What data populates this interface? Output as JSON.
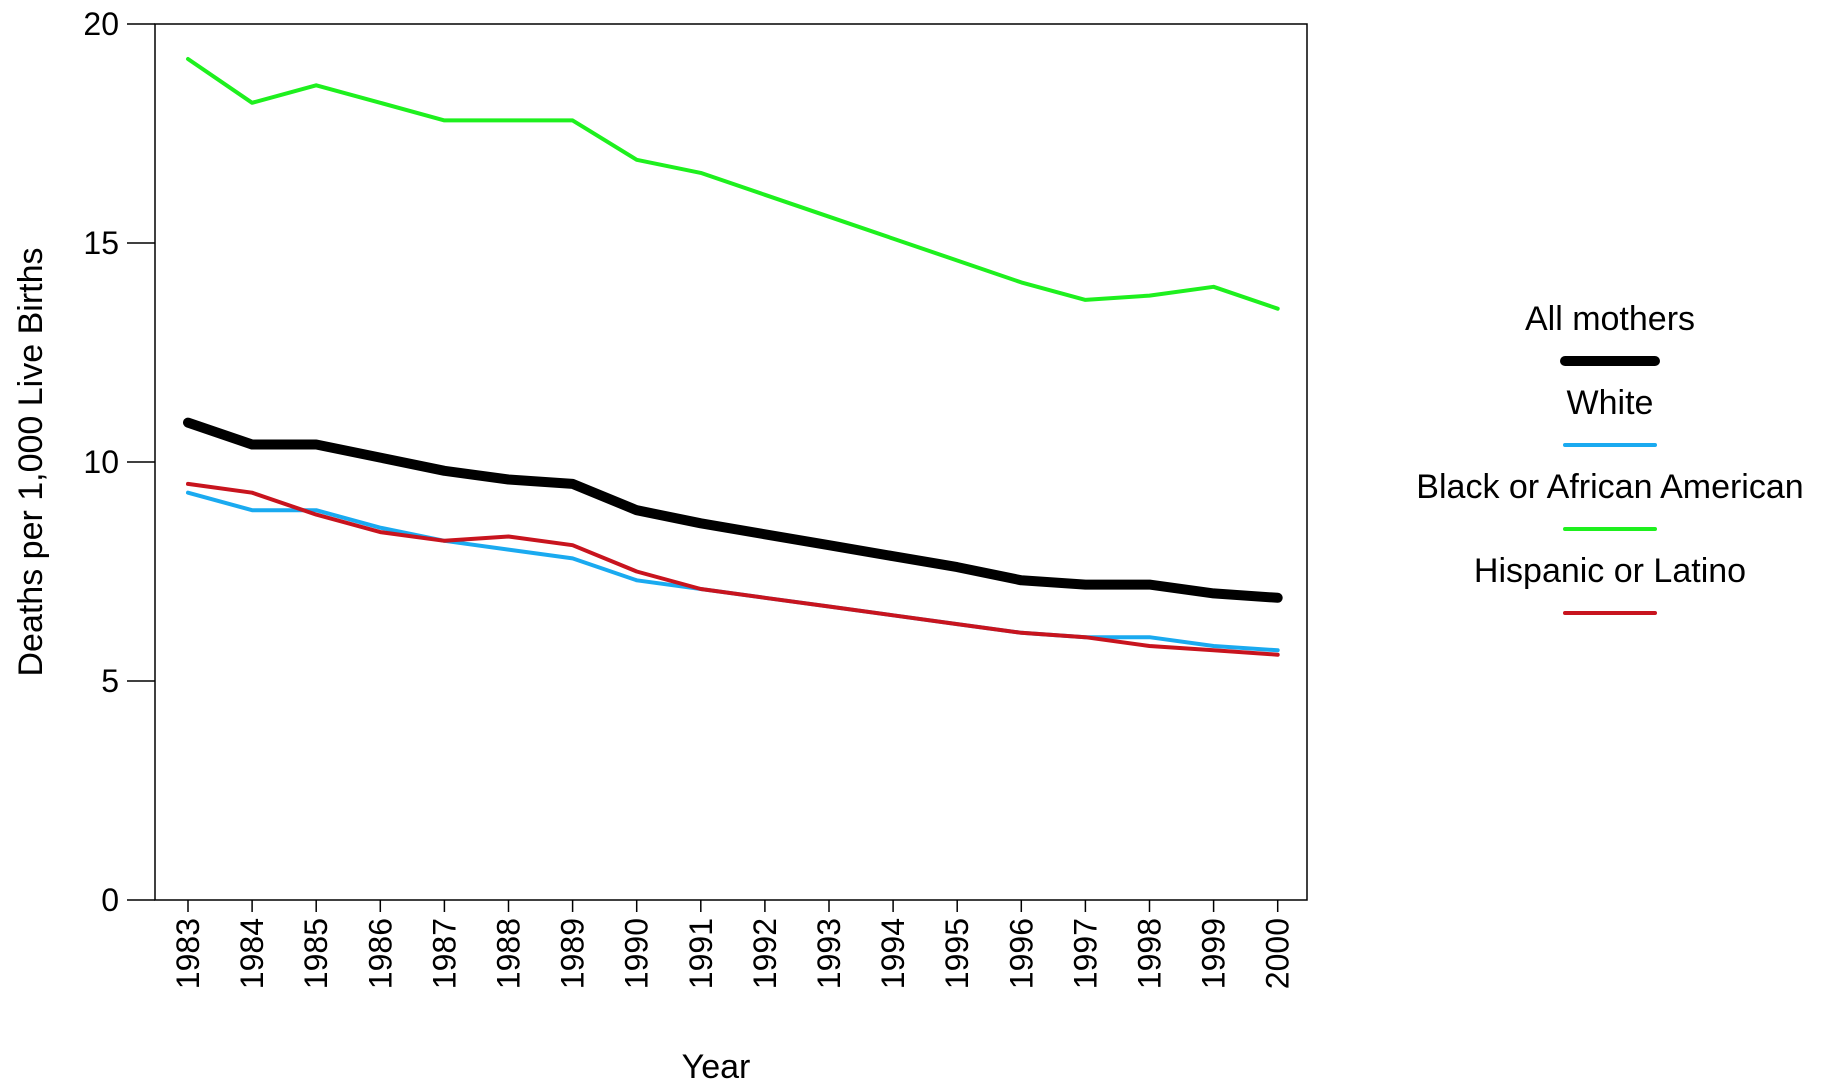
{
  "chart_data": {
    "type": "line",
    "title": "",
    "xlabel": "Year",
    "ylabel": "Deaths per 1,000 Live Births",
    "ylim": [
      0,
      20
    ],
    "yticks": [
      "0",
      "5",
      "10",
      "15",
      "20"
    ],
    "x": [
      "1983",
      "1984",
      "1985",
      "1986",
      "1987",
      "1988",
      "1989",
      "1990",
      "1991",
      "1992",
      "1993",
      "1994",
      "1995",
      "1996",
      "1997",
      "1998",
      "1999",
      "2000"
    ],
    "grid": false,
    "legend_position": "right",
    "series": [
      {
        "name": "All mothers",
        "color": "#000000",
        "values": [
          10.9,
          10.4,
          10.4,
          10.1,
          9.8,
          9.6,
          9.5,
          8.9,
          8.6,
          8.35,
          8.1,
          7.85,
          7.6,
          7.3,
          7.2,
          7.2,
          7.0,
          6.9
        ]
      },
      {
        "name": "White",
        "color": "#1aaaf0",
        "values": [
          9.3,
          8.9,
          8.9,
          8.5,
          8.2,
          8.0,
          7.8,
          7.3,
          7.1,
          6.9,
          6.7,
          6.5,
          6.3,
          6.1,
          6.0,
          6.0,
          5.8,
          5.7
        ]
      },
      {
        "name": "Black or African American",
        "color": "#1ef01e",
        "values": [
          19.2,
          18.2,
          18.6,
          18.2,
          17.8,
          17.8,
          17.8,
          16.9,
          16.6,
          16.1,
          15.6,
          15.1,
          14.6,
          14.1,
          13.7,
          13.8,
          14.0,
          13.5
        ]
      },
      {
        "name": "Hispanic or Latino",
        "color": "#c8141e",
        "values": [
          9.5,
          9.3,
          8.8,
          8.4,
          8.2,
          8.3,
          8.1,
          7.5,
          7.1,
          6.9,
          6.7,
          6.5,
          6.3,
          6.1,
          6.0,
          5.8,
          5.7,
          5.6
        ]
      }
    ]
  }
}
